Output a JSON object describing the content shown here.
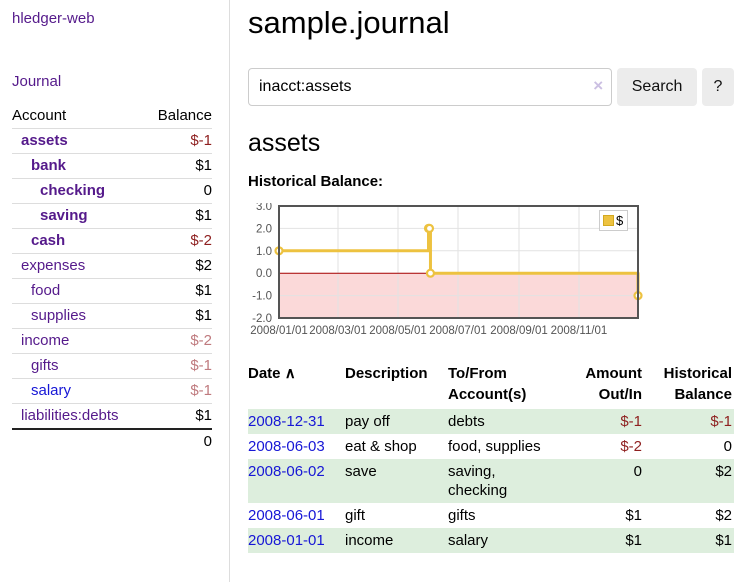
{
  "app": {
    "brand": "hledger-web"
  },
  "nav": {
    "journal": "Journal"
  },
  "sidebar": {
    "accounts": {
      "col_account": "Account",
      "col_balance": "Balance",
      "rows": [
        {
          "name": "assets",
          "balance": "$-1"
        },
        {
          "name": "bank",
          "balance": "$1"
        },
        {
          "name": "checking",
          "balance": "0"
        },
        {
          "name": "saving",
          "balance": "$1"
        },
        {
          "name": "cash",
          "balance": "$-2"
        },
        {
          "name": "expenses",
          "balance": "$2"
        },
        {
          "name": "food",
          "balance": "$1"
        },
        {
          "name": "supplies",
          "balance": "$1"
        },
        {
          "name": "income",
          "balance": "$-2"
        },
        {
          "name": "gifts",
          "balance": "$-1"
        },
        {
          "name": "salary",
          "balance": "$-1"
        },
        {
          "name": "liabilities:debts",
          "balance": "$1"
        }
      ],
      "total_balance": "0"
    }
  },
  "main": {
    "title": "sample.journal",
    "search": {
      "query": "inacct:assets",
      "clear_icon": "×",
      "search_button": "Search",
      "help_button": "?"
    },
    "account_heading": "assets",
    "chart_heading": "Historical Balance:"
  },
  "chart_data": {
    "type": "line",
    "title": "Historical Balance",
    "style": "steps",
    "xrange": [
      "2008-01-01",
      "2008-12-31"
    ],
    "yrange": [
      -2,
      3
    ],
    "yticks": [
      "3.0",
      "2.0",
      "1.0",
      "0.0",
      "-1.0",
      "-2.0"
    ],
    "xticks": [
      "2008/01/01",
      "2008/03/01",
      "2008/05/01",
      "2008/07/01",
      "2008/09/01",
      "2008/11/01"
    ],
    "legend": [
      {
        "label": "$",
        "color": "#edc240"
      }
    ],
    "series": [
      {
        "name": "$",
        "points": [
          [
            "2008-01-01",
            1
          ],
          [
            "2008-06-01",
            2
          ],
          [
            "2008-06-02",
            2
          ],
          [
            "2008-06-03",
            0
          ],
          [
            "2008-12-31",
            -1
          ]
        ]
      }
    ],
    "colors": {
      "series": "#edc240",
      "marker_fill": "#ffffff",
      "negative_region": "#fbd9d9",
      "zero_line": "#a40000",
      "grid": "#e2e2e2",
      "border": "#545454",
      "tick_label": "#545454"
    }
  },
  "register": {
    "columns": {
      "date": "Date",
      "sort_indicator": "∧",
      "description": "Description",
      "accounts": "To/From Account(s)",
      "amount": "Amount Out/In",
      "balance": "Historical Balance"
    },
    "rows": [
      {
        "date": "2008-12-31",
        "description": "pay off",
        "accounts": "debts",
        "amount": "$-1",
        "balance": "$-1"
      },
      {
        "date": "2008-06-03",
        "description": "eat & shop",
        "accounts": "food, supplies",
        "amount": "$-2",
        "balance": "0"
      },
      {
        "date": "2008-06-02",
        "description": "save",
        "accounts": "saving, checking",
        "amount": "0",
        "balance": "$2"
      },
      {
        "date": "2008-06-01",
        "description": "gift",
        "accounts": "gifts",
        "amount": "$1",
        "balance": "$2"
      },
      {
        "date": "2008-01-01",
        "description": "income",
        "accounts": "salary",
        "amount": "$1",
        "balance": "$1"
      }
    ]
  }
}
